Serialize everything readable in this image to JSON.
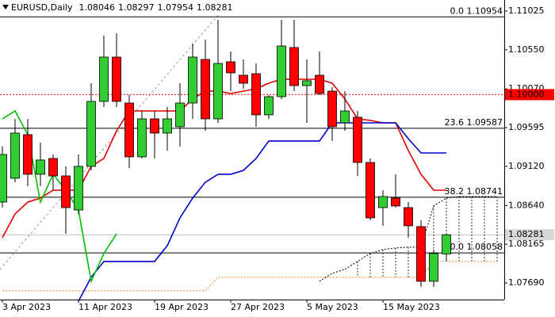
{
  "chart_data": {
    "type": "candlestick",
    "title": "EURUSD,Daily",
    "up_color": "#32cd32",
    "down_color": "#ff0000",
    "categories": [
      "3 Apr 2023",
      null,
      null,
      null,
      null,
      null,
      "11 Apr 2023",
      null,
      null,
      null,
      null,
      null,
      "19 Apr 2023",
      null,
      null,
      null,
      null,
      null,
      "27 Apr 2023",
      null,
      null,
      null,
      null,
      null,
      "5 May 2023",
      null,
      null,
      null,
      null,
      null,
      "15 May 2023",
      null,
      null,
      null,
      null,
      null,
      null,
      null,
      null,
      null
    ],
    "candles": [
      {
        "open": 1.08682,
        "high": 1.09363,
        "low": 1.08614,
        "close": 1.09266
      },
      {
        "open": 1.08974,
        "high": 1.09703,
        "low": 1.08925,
        "close": 1.09528
      },
      {
        "open": 1.09509,
        "high": 1.09703,
        "low": 1.08877,
        "close": 1.09023
      },
      {
        "open": 1.09023,
        "high": 1.09411,
        "low": 1.08877,
        "close": 1.09198
      },
      {
        "open": 1.09217,
        "high": 1.09266,
        "low": 1.08828,
        "close": 1.09003
      },
      {
        "open": 1.09003,
        "high": 1.0912,
        "low": 1.08294,
        "close": 1.08614
      },
      {
        "open": 1.08585,
        "high": 1.09266,
        "low": 1.08537,
        "close": 1.0912
      },
      {
        "open": 1.0912,
        "high": 1.1014,
        "low": 1.09071,
        "close": 1.09917
      },
      {
        "open": 1.09917,
        "high": 1.10724,
        "low": 1.09849,
        "close": 1.10461
      },
      {
        "open": 1.10461,
        "high": 1.10753,
        "low": 1.09849,
        "close": 1.09917
      },
      {
        "open": 1.09897,
        "high": 1.09995,
        "low": 1.091,
        "close": 1.09237
      },
      {
        "open": 1.09237,
        "high": 1.098,
        "low": 1.09217,
        "close": 1.09703
      },
      {
        "open": 1.09703,
        "high": 1.098,
        "low": 1.09217,
        "close": 1.09528
      },
      {
        "open": 1.09528,
        "high": 1.09849,
        "low": 1.09314,
        "close": 1.09703
      },
      {
        "open": 1.09606,
        "high": 1.1014,
        "low": 1.09363,
        "close": 1.09897
      },
      {
        "open": 1.09897,
        "high": 1.10626,
        "low": 1.09703,
        "close": 1.10461
      },
      {
        "open": 1.10432,
        "high": 1.10675,
        "low": 1.09557,
        "close": 1.09703
      },
      {
        "open": 1.09703,
        "high": 1.10918,
        "low": 1.09654,
        "close": 1.10383
      },
      {
        "open": 1.10403,
        "high": 1.10529,
        "low": 1.10043,
        "close": 1.10267
      },
      {
        "open": 1.10238,
        "high": 1.10432,
        "low": 1.10072,
        "close": 1.1014
      },
      {
        "open": 1.10257,
        "high": 1.10383,
        "low": 1.09606,
        "close": 1.09752
      },
      {
        "open": 1.09752,
        "high": 1.09995,
        "low": 1.09703,
        "close": 1.09975
      },
      {
        "open": 1.09975,
        "high": 1.10918,
        "low": 1.09946,
        "close": 1.10597
      },
      {
        "open": 1.10578,
        "high": 1.10918,
        "low": 1.10043,
        "close": 1.10111
      },
      {
        "open": 1.10111,
        "high": 1.10432,
        "low": 1.09654,
        "close": 1.1017
      },
      {
        "open": 1.10238,
        "high": 1.10529,
        "low": 1.09995,
        "close": 1.10014
      },
      {
        "open": 1.10043,
        "high": 1.10092,
        "low": 1.09431,
        "close": 1.09606
      },
      {
        "open": 1.09654,
        "high": 1.10043,
        "low": 1.09557,
        "close": 1.098
      },
      {
        "open": 1.09723,
        "high": 1.098,
        "low": 1.09003,
        "close": 1.09168
      },
      {
        "open": 1.09168,
        "high": 1.09217,
        "low": 1.08459,
        "close": 1.08488
      },
      {
        "open": 1.08614,
        "high": 1.08828,
        "low": 1.08391,
        "close": 1.0875
      },
      {
        "open": 1.08731,
        "high": 1.09023,
        "low": 1.08614,
        "close": 1.08634
      },
      {
        "open": 1.08614,
        "high": 1.08682,
        "low": 1.08245,
        "close": 1.08391
      },
      {
        "open": 1.08381,
        "high": 1.08459,
        "low": 1.07642,
        "close": 1.0771
      },
      {
        "open": 1.0771,
        "high": 1.08099,
        "low": 1.07642,
        "close": 1.08051
      },
      {
        "open": 1.08046,
        "high": 1.08297,
        "low": 1.07954,
        "close": 1.08281
      },
      null,
      null,
      null,
      null
    ],
    "series": [
      {
        "name": "red-line",
        "color": "#e00000",
        "style": "solid",
        "values": [
          1.08245,
          1.08537,
          1.08682,
          1.08731,
          1.08828,
          1.08828,
          1.08828,
          1.0912,
          1.09217,
          1.09557,
          1.098,
          1.098,
          1.098,
          1.098,
          1.098,
          1.09946,
          1.10043,
          1.10043,
          1.10014,
          1.10043,
          1.10072,
          1.1014,
          1.10189,
          1.10189,
          1.10189,
          1.10189,
          1.1014,
          1.09946,
          1.09703,
          1.09684,
          1.09654,
          1.09654,
          1.09314,
          1.09023,
          1.08828,
          1.08828,
          null,
          null,
          null,
          null
        ]
      },
      {
        "name": "blue-line",
        "color": "#0000cd",
        "style": "solid",
        "values": [
          null,
          null,
          null,
          null,
          null,
          null,
          1.07468,
          1.07759,
          1.07954,
          1.07954,
          1.07954,
          1.07954,
          1.07954,
          1.08148,
          1.08488,
          1.08731,
          1.08925,
          1.09023,
          1.09023,
          1.09071,
          1.09217,
          1.09431,
          1.09431,
          1.09431,
          1.09431,
          1.09431,
          1.09654,
          1.09654,
          1.09654,
          1.09654,
          1.09654,
          1.09654,
          1.0946,
          1.09285,
          1.09285,
          1.09285,
          null,
          null,
          null,
          null
        ]
      },
      {
        "name": "green-line",
        "color": "#00c000",
        "style": "solid",
        "values": [
          1.09703,
          1.098,
          1.09509,
          1.08682,
          1.09023,
          1.08828,
          1.08585,
          1.0771,
          1.08051,
          1.08294,
          null,
          null,
          null,
          null,
          null,
          null,
          null,
          null,
          null,
          null,
          null,
          null,
          null,
          null,
          null,
          null,
          null,
          null,
          null,
          null,
          null,
          null,
          null,
          null,
          null,
          null,
          null,
          null,
          null,
          null
        ]
      },
      {
        "name": "span-a",
        "color": "#000000",
        "style": "dotted",
        "values": [
          null,
          null,
          null,
          null,
          null,
          null,
          null,
          null,
          null,
          null,
          null,
          null,
          null,
          null,
          null,
          null,
          null,
          null,
          null,
          null,
          null,
          null,
          null,
          null,
          null,
          1.0771,
          1.07808,
          1.07857,
          1.07954,
          1.08051,
          1.08099,
          1.08119,
          1.08129,
          1.08129,
          1.08634,
          1.08731,
          1.0875,
          1.0875,
          1.0875,
          1.0875
        ]
      },
      {
        "name": "span-b",
        "color": "#e08030",
        "style": "dotted",
        "values": [
          1.07594,
          1.07594,
          1.07594,
          1.07594,
          1.07594,
          1.07594,
          1.07594,
          1.07594,
          1.07594,
          1.07594,
          1.07594,
          1.07594,
          1.07594,
          1.07594,
          1.07594,
          1.07594,
          1.07594,
          1.07759,
          1.07759,
          1.07759,
          1.07759,
          1.07759,
          1.07759,
          1.07759,
          1.07759,
          1.07759,
          1.07759,
          1.07759,
          1.07759,
          1.07759,
          1.07759,
          1.07759,
          1.07759,
          1.07759,
          1.07954,
          1.07954,
          1.07954,
          1.07954,
          1.07954,
          1.07954
        ]
      }
    ],
    "fib_levels": [
      {
        "value": 1.10954,
        "label": "0.0 1.10954"
      },
      {
        "value": 1.09587,
        "label": "23.6 1.09587"
      },
      {
        "value": 1.08741,
        "label": "38.2 1.08741"
      },
      {
        "value": 1.08058,
        "label": "0.0 1.08058"
      }
    ],
    "alert_line": {
      "value": 1.1,
      "label": "1.10000",
      "color": "#ff0000"
    },
    "ylim": [
      1.07486,
      1.11161
    ],
    "yticks": [
      1.11025,
      {
        "value": 1.1055,
        "label": "1.10550"
      },
      {
        "value": 1.1007,
        "label": "1.10070"
      },
      1.09595,
      {
        "value": 1.0912,
        "label": "1.09120"
      },
      {
        "value": 1.0864,
        "label": "1.08640"
      },
      1.08165,
      {
        "value": 1.0769,
        "label": "1.07690"
      }
    ]
  }
}
